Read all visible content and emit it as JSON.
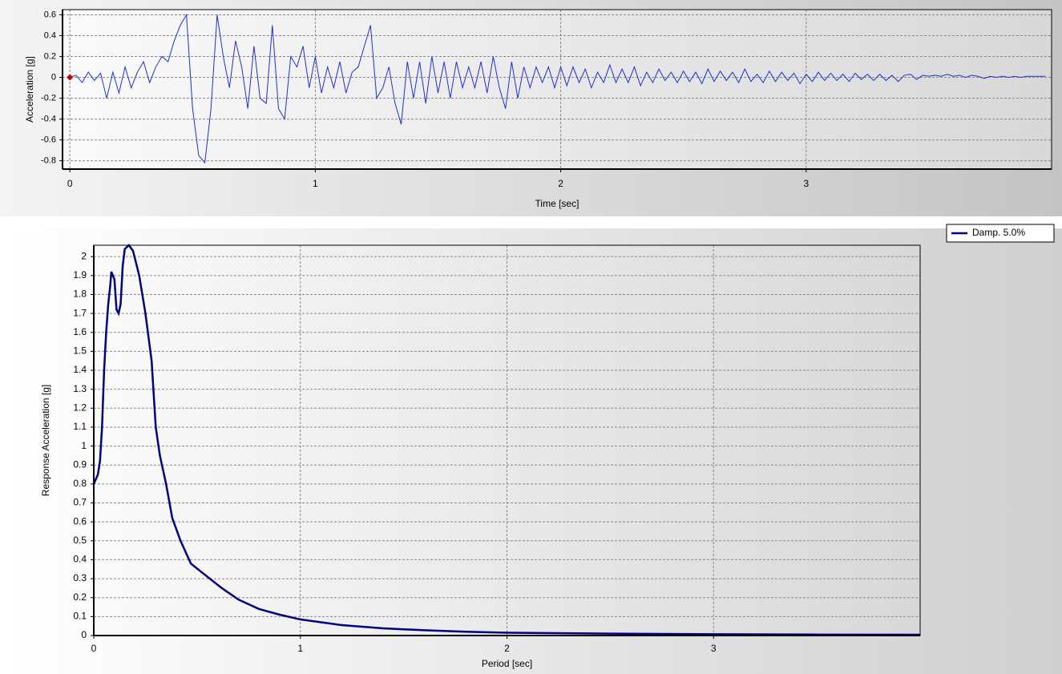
{
  "chart_data": [
    {
      "type": "line",
      "x_label": "Time [sec]",
      "y_label": "Acceleration [g]",
      "xlim": [
        -0.03,
        4.0
      ],
      "ylim": [
        -0.88,
        0.65
      ],
      "xticks": [
        0,
        1,
        2,
        3
      ],
      "yticks": [
        -0.8,
        -0.6,
        -0.4,
        -0.2,
        0,
        0.2,
        0.4,
        0.6
      ],
      "grid": true,
      "series": [
        {
          "color": "#1f2fcf",
          "x": [
            0,
            0.025,
            0.05,
            0.075,
            0.1,
            0.125,
            0.15,
            0.175,
            0.2,
            0.225,
            0.25,
            0.275,
            0.3,
            0.325,
            0.35,
            0.375,
            0.4,
            0.425,
            0.45,
            0.475,
            0.5,
            0.525,
            0.55,
            0.575,
            0.6,
            0.625,
            0.65,
            0.675,
            0.7,
            0.725,
            0.75,
            0.775,
            0.8,
            0.825,
            0.85,
            0.875,
            0.9,
            0.925,
            0.95,
            0.975,
            1.0,
            1.025,
            1.05,
            1.075,
            1.1,
            1.125,
            1.15,
            1.175,
            1.2,
            1.225,
            1.25,
            1.275,
            1.3,
            1.325,
            1.35,
            1.375,
            1.4,
            1.425,
            1.45,
            1.475,
            1.5,
            1.525,
            1.55,
            1.575,
            1.6,
            1.625,
            1.65,
            1.675,
            1.7,
            1.725,
            1.75,
            1.775,
            1.8,
            1.825,
            1.85,
            1.875,
            1.9,
            1.925,
            1.95,
            1.975,
            2.0,
            2.025,
            2.05,
            2.075,
            2.1,
            2.125,
            2.15,
            2.175,
            2.2,
            2.225,
            2.25,
            2.275,
            2.3,
            2.325,
            2.35,
            2.375,
            2.4,
            2.425,
            2.45,
            2.475,
            2.5,
            2.525,
            2.55,
            2.575,
            2.6,
            2.625,
            2.65,
            2.675,
            2.7,
            2.725,
            2.75,
            2.775,
            2.8,
            2.825,
            2.85,
            2.875,
            2.9,
            2.925,
            2.95,
            2.975,
            3.0,
            3.025,
            3.05,
            3.075,
            3.1,
            3.125,
            3.15,
            3.175,
            3.2,
            3.225,
            3.25,
            3.275,
            3.3,
            3.325,
            3.35,
            3.375,
            3.4,
            3.425,
            3.45,
            3.475,
            3.5,
            3.525,
            3.55,
            3.575,
            3.6,
            3.625,
            3.65,
            3.675,
            3.7,
            3.725,
            3.75,
            3.775,
            3.8,
            3.825,
            3.85,
            3.875,
            3.9,
            3.925,
            3.95,
            3.975
          ],
          "values": [
            0,
            0.02,
            -0.05,
            0.05,
            -0.03,
            0.04,
            -0.2,
            0.05,
            -0.15,
            0.1,
            -0.1,
            0.05,
            0.15,
            -0.05,
            0.1,
            0.2,
            0.15,
            0.35,
            0.5,
            0.6,
            -0.3,
            -0.75,
            -0.82,
            -0.3,
            0.6,
            0.2,
            -0.1,
            0.35,
            0.1,
            -0.3,
            0.3,
            -0.2,
            -0.25,
            0.5,
            -0.3,
            -0.4,
            0.2,
            0.1,
            0.3,
            -0.1,
            0.2,
            -0.15,
            0.1,
            -0.1,
            0.15,
            -0.15,
            0.05,
            0.1,
            0.3,
            0.5,
            -0.2,
            -0.1,
            0.1,
            -0.25,
            -0.45,
            0.15,
            -0.2,
            0.15,
            -0.25,
            0.2,
            -0.15,
            0.15,
            -0.2,
            0.15,
            -0.1,
            0.1,
            -0.1,
            0.15,
            -0.15,
            0.2,
            -0.1,
            -0.3,
            0.15,
            -0.2,
            0.1,
            -0.1,
            0.1,
            -0.05,
            0.1,
            -0.1,
            0.1,
            -0.08,
            0.1,
            -0.05,
            0.08,
            -0.1,
            0.05,
            -0.05,
            0.12,
            -0.05,
            0.08,
            -0.05,
            0.1,
            -0.08,
            0.05,
            -0.05,
            0.08,
            -0.03,
            0.05,
            -0.05,
            0.06,
            -0.04,
            0.05,
            -0.06,
            0.08,
            -0.04,
            0.06,
            -0.03,
            0.05,
            -0.05,
            0.08,
            -0.04,
            0.03,
            -0.05,
            0.06,
            -0.04,
            0.05,
            -0.03,
            0.04,
            -0.06,
            0.03,
            -0.04,
            0.05,
            -0.03,
            0.04,
            -0.03,
            0.03,
            -0.04,
            0.04,
            -0.02,
            0.03,
            -0.03,
            0.03,
            -0.03,
            0.02,
            -0.04,
            0.02,
            0.03,
            -0.02,
            0.02,
            0.01,
            0.02,
            0.01,
            0.03,
            0.01,
            0.02,
            0,
            0.02,
            0.01,
            -0.01,
            0.01,
            0,
            0.01,
            0,
            0.01,
            0,
            0.01,
            0.01,
            0.01,
            0.01
          ]
        }
      ]
    },
    {
      "type": "line",
      "x_label": "Period [sec]",
      "y_label": "Response Acceleration [g]",
      "xlim": [
        0,
        4.0
      ],
      "ylim": [
        0,
        2.06
      ],
      "xticks": [
        0,
        1,
        2,
        3
      ],
      "yticks": [
        0,
        0.1,
        0.2,
        0.3,
        0.4,
        0.5,
        0.6,
        0.7,
        0.8,
        0.9,
        1,
        1.1,
        1.2,
        1.3,
        1.4,
        1.5,
        1.6,
        1.7,
        1.8,
        1.9,
        2
      ],
      "grid": true,
      "legend": "right",
      "series": [
        {
          "name": "Damp. 5.0%",
          "color": "#000080",
          "x": [
            0,
            0.02,
            0.03,
            0.04,
            0.05,
            0.06,
            0.07,
            0.08,
            0.085,
            0.1,
            0.11,
            0.12,
            0.13,
            0.14,
            0.15,
            0.17,
            0.19,
            0.22,
            0.25,
            0.28,
            0.3,
            0.32,
            0.35,
            0.38,
            0.42,
            0.47,
            0.55,
            0.62,
            0.7,
            0.8,
            0.9,
            1.0,
            1.2,
            1.4,
            1.6,
            1.8,
            2.0,
            2.5,
            3.0,
            3.5,
            4.0
          ],
          "values": [
            0.8,
            0.85,
            0.92,
            1.1,
            1.4,
            1.6,
            1.75,
            1.85,
            1.92,
            1.88,
            1.72,
            1.7,
            1.75,
            1.95,
            2.04,
            2.06,
            2.03,
            1.9,
            1.7,
            1.45,
            1.1,
            0.95,
            0.8,
            0.62,
            0.5,
            0.38,
            0.31,
            0.25,
            0.19,
            0.14,
            0.11,
            0.085,
            0.055,
            0.038,
            0.028,
            0.02,
            0.015,
            0.01,
            0.007,
            0.005,
            0.004
          ]
        }
      ]
    }
  ]
}
